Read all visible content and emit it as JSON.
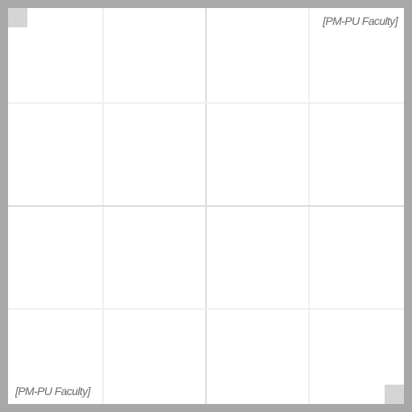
{
  "canvas": {
    "watermark_top": "[PM-PU Faculty]",
    "watermark_bottom": "[PM-PU Faculty]"
  },
  "colors": {
    "background_frame": "#a8a8a8",
    "canvas": "#ffffff",
    "grid_minor": "#f0f0f0",
    "grid_major": "#dddddd",
    "corner_tab": "#d5d5d5",
    "watermark_text": "#6b6b6b"
  }
}
